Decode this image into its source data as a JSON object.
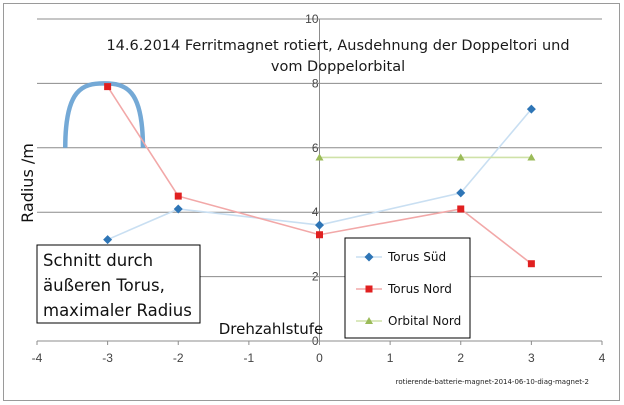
{
  "chart_data": {
    "type": "line",
    "title_lines": [
      "14.6.2014 Ferritmagnet rotiert, Ausdehnung der Doppeltori und",
      "vom Doppelorbital"
    ],
    "xlabel": "Drehzahlstufe",
    "ylabel": "Radius /m",
    "xlim": [
      -4,
      4
    ],
    "ylim": [
      0,
      10
    ],
    "x_ticks": [
      "-4",
      "-3",
      "-2",
      "-1",
      "0",
      "1",
      "2",
      "3",
      "4"
    ],
    "y_ticks": [
      "0",
      "2",
      "4",
      "6",
      "8",
      "10"
    ],
    "grid": "horizontal",
    "legend_position": "bottom-right",
    "series": [
      {
        "name": "Torus Süd",
        "marker": "diamond",
        "marker_color": "#2e75b6",
        "line_color": "#c9dff2",
        "x": [
          -3,
          -2,
          0,
          2,
          3
        ],
        "y": [
          3.15,
          4.1,
          3.6,
          4.6,
          7.2
        ]
      },
      {
        "name": "Torus Nord",
        "marker": "square",
        "marker_color": "#e02020",
        "line_color": "#f2a8a8",
        "x": [
          -3,
          -2,
          0,
          2,
          3
        ],
        "y": [
          7.9,
          4.5,
          3.3,
          4.1,
          2.4
        ]
      },
      {
        "name": "Orbital Nord",
        "marker": "triangle",
        "marker_color": "#9bbb59",
        "line_color": "#cfe2a8",
        "x": [
          0,
          2,
          3
        ],
        "y": [
          5.7,
          5.7,
          5.7
        ]
      }
    ],
    "annotation_lines": [
      "Schnitt durch",
      "äußeren Torus,",
      "maximaler Radius"
    ],
    "arc_color": "#74a9d6",
    "footer": "rotierende-batterie-magnet-2014-06-10-diag-magnet-2"
  }
}
